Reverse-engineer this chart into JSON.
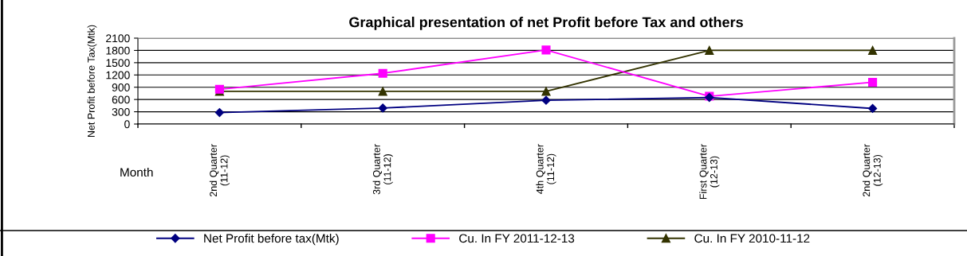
{
  "chart_data": {
    "type": "line",
    "title": "Graphical presentation of net Profit before Tax and others",
    "xlabel": "Month",
    "ylabel": "Net Profit before Tax(Mtk)",
    "categories": [
      "2nd Quarter\n(11-12)",
      "3rd Quarter\n(11-12)",
      "4th Quarter\n(11-12)",
      "First Quarter\n(12-13)",
      "2nd Quarter\n(12-13)"
    ],
    "series": [
      {
        "name": "Net Profit before tax(Mtk)",
        "color": "#000080",
        "marker": "diamond",
        "values": [
          280,
          390,
          580,
          650,
          380
        ]
      },
      {
        "name": "Cu. In FY 2011-12-13",
        "color": "#ff00ff",
        "marker": "square",
        "values": [
          850,
          1240,
          1810,
          680,
          1020
        ]
      },
      {
        "name": "Cu. In FY 2010-11-12",
        "color": "#333300",
        "marker": "triangle",
        "values": [
          800,
          800,
          800,
          1800,
          1800
        ]
      }
    ],
    "ylim": [
      0,
      2100
    ],
    "yticks": [
      0,
      300,
      600,
      900,
      1200,
      1500,
      1800,
      2100
    ],
    "grid": "y",
    "legend": "bottom",
    "line_style": "solid"
  }
}
